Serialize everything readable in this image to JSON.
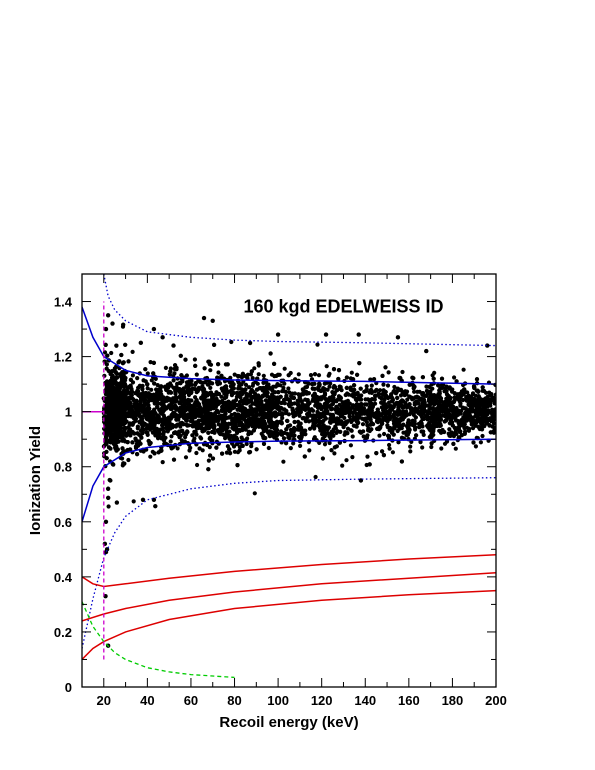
{
  "chart_data": {
    "type": "scatter",
    "title": "160 kgd EDELWEISS ID",
    "xlabel": "Recoil energy (keV)",
    "ylabel": "Ionization Yield",
    "xlim": [
      10,
      200
    ],
    "ylim": [
      0,
      1.5
    ],
    "xticks": [
      20,
      40,
      60,
      80,
      100,
      120,
      140,
      160,
      180,
      200
    ],
    "xtick_labels": [
      "20",
      "40",
      "60",
      "80",
      "100",
      "120",
      "140",
      "160",
      "180",
      "200"
    ],
    "yticks": [
      0,
      0.2,
      0.4,
      0.6,
      0.8,
      1.0,
      1.2,
      1.4
    ],
    "ytick_labels": [
      "0",
      "0.2",
      "0.4",
      "0.6",
      "0.8",
      "1",
      "1.2",
      "1.4"
    ],
    "grid": false,
    "scatter_series": {
      "description_points": "dense band of events centred on yield 1 from 20 to 200 keV, plus outliers",
      "band_center": 1.0,
      "band_halfwidth_at_20keV": 0.1,
      "band_halfwidth_at_200keV": 0.065,
      "outliers": [
        {
          "x": 20.5,
          "y": 0.52
        },
        {
          "x": 21,
          "y": 0.49
        },
        {
          "x": 21.5,
          "y": 0.5
        },
        {
          "x": 20.8,
          "y": 0.33
        },
        {
          "x": 22,
          "y": 0.15
        },
        {
          "x": 21,
          "y": 0.6
        },
        {
          "x": 22,
          "y": 0.72
        },
        {
          "x": 23,
          "y": 0.75
        },
        {
          "x": 26,
          "y": 0.67
        },
        {
          "x": 38,
          "y": 0.68
        },
        {
          "x": 43,
          "y": 0.68
        },
        {
          "x": 138,
          "y": 0.75
        },
        {
          "x": 22,
          "y": 1.35
        },
        {
          "x": 21,
          "y": 1.3
        },
        {
          "x": 24,
          "y": 1.32
        },
        {
          "x": 43,
          "y": 1.3
        },
        {
          "x": 47,
          "y": 1.27
        },
        {
          "x": 66,
          "y": 1.34
        },
        {
          "x": 70,
          "y": 1.33
        },
        {
          "x": 100,
          "y": 1.28
        },
        {
          "x": 122,
          "y": 1.28
        },
        {
          "x": 137,
          "y": 1.28
        },
        {
          "x": 155,
          "y": 1.27
        },
        {
          "x": 168,
          "y": 1.22
        },
        {
          "x": 196,
          "y": 1.24
        },
        {
          "x": 37,
          "y": 1.25
        },
        {
          "x": 52,
          "y": 1.24
        }
      ],
      "color": "#000000"
    },
    "curves": [
      {
        "style": "solid",
        "color": "#0000cc",
        "role": "electron recoil band upper limit",
        "x": [
          10,
          15,
          20,
          30,
          40,
          60,
          80,
          100,
          140,
          200
        ],
        "y": [
          1.38,
          1.27,
          1.2,
          1.15,
          1.13,
          1.12,
          1.115,
          1.113,
          1.11,
          1.1
        ]
      },
      {
        "style": "solid",
        "color": "#0000cc",
        "role": "electron recoil band lower limit",
        "x": [
          10,
          15,
          20,
          30,
          40,
          60,
          80,
          100,
          140,
          200
        ],
        "y": [
          0.6,
          0.73,
          0.8,
          0.85,
          0.87,
          0.885,
          0.89,
          0.893,
          0.895,
          0.9
        ]
      },
      {
        "style": "dotted",
        "color": "#0000cc",
        "role": "electron recoil band outer upper",
        "x": [
          20,
          22,
          25,
          30,
          40,
          60,
          80,
          100,
          140,
          200
        ],
        "y": [
          1.5,
          1.42,
          1.37,
          1.33,
          1.29,
          1.27,
          1.26,
          1.255,
          1.25,
          1.24
        ]
      },
      {
        "style": "dotted",
        "color": "#0000cc",
        "role": "electron recoil band outer lower",
        "x": [
          10,
          15,
          20,
          25,
          30,
          40,
          60,
          80,
          100,
          140,
          200
        ],
        "y": [
          0.14,
          0.32,
          0.47,
          0.56,
          0.62,
          0.68,
          0.72,
          0.74,
          0.75,
          0.755,
          0.76
        ]
      },
      {
        "style": "solid",
        "color": "#dd0000",
        "role": "nuclear recoil band upper",
        "x": [
          10,
          15,
          20,
          30,
          50,
          80,
          120,
          160,
          200
        ],
        "y": [
          0.4,
          0.375,
          0.365,
          0.375,
          0.395,
          0.42,
          0.445,
          0.465,
          0.48
        ]
      },
      {
        "style": "solid",
        "color": "#dd0000",
        "role": "nuclear recoil band center",
        "x": [
          10,
          20,
          30,
          50,
          80,
          120,
          160,
          200
        ],
        "y": [
          0.24,
          0.265,
          0.285,
          0.315,
          0.345,
          0.375,
          0.395,
          0.415
        ]
      },
      {
        "style": "solid",
        "color": "#dd0000",
        "role": "nuclear recoil band lower",
        "x": [
          10,
          15,
          20,
          30,
          50,
          80,
          120,
          160,
          200
        ],
        "y": [
          0.1,
          0.14,
          0.165,
          0.2,
          0.245,
          0.285,
          0.315,
          0.335,
          0.35
        ]
      },
      {
        "style": "dashed",
        "color": "#00cc00",
        "role": "threshold curve",
        "x": [
          10,
          15,
          20,
          25,
          30,
          40,
          50,
          60,
          70,
          80
        ],
        "y": [
          0.31,
          0.22,
          0.165,
          0.125,
          0.1,
          0.07,
          0.055,
          0.045,
          0.04,
          0.035
        ]
      },
      {
        "style": "solid",
        "color": "#cc00cc",
        "role": "yield = 1 reference",
        "x": [
          10,
          20
        ],
        "y": [
          1.0,
          1.0
        ]
      },
      {
        "style": "dashed",
        "color": "#cc00cc",
        "role": "20 keV recoil threshold",
        "x": [
          20,
          20
        ],
        "y": [
          0.1,
          1.4
        ]
      }
    ]
  }
}
